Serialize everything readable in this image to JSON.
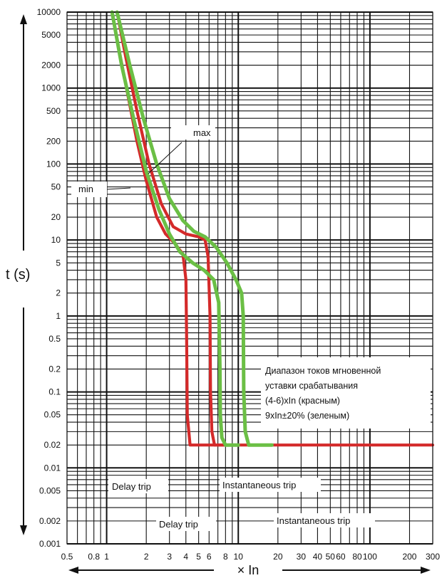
{
  "chart_data": {
    "type": "line",
    "xscale": "log",
    "yscale": "log",
    "xlim": [
      0.5,
      300
    ],
    "ylim": [
      0.001,
      10000
    ],
    "xlabel": "× In",
    "ylabel": "t (s)",
    "x_ticks": [
      "0.5",
      "0.8",
      "1",
      "2",
      "3",
      "4",
      "5",
      "6",
      "8",
      "10",
      "20",
      "30",
      "40",
      "50",
      "60",
      "80",
      "100",
      "200",
      "300"
    ],
    "y_ticks": [
      "0.001",
      "0.002",
      "0.005",
      "0.01",
      "0.02",
      "0.05",
      "0.1",
      "0.2",
      "0.5",
      "1",
      "2",
      "5",
      "10",
      "20",
      "50",
      "100",
      "200",
      "500",
      "1000",
      "2000",
      "5000",
      "10000"
    ],
    "grid": true,
    "annotations": {
      "max": "max",
      "min": "min",
      "delay_trip": "Delay trip",
      "instantaneous_trip": "Instantaneous trip",
      "note": [
        "Диапазон токов мгновенной",
        "уставки срабатывания",
        "(4-6)xIn (красным)",
        "9xIn±20% (зеленым)"
      ]
    },
    "series": [
      {
        "color": "#d42a2a",
        "x": [
          1.1,
          1.25,
          1.45,
          1.7,
          2.0,
          2.4,
          2.8,
          3.3,
          3.8,
          4.0,
          4.05,
          4.1,
          4.3,
          5.0,
          10.0,
          300.0
        ],
        "y": [
          10000,
          3000,
          800,
          200,
          60,
          20,
          12,
          9,
          6.5,
          3.0,
          0.5,
          0.05,
          0.02,
          0.02,
          0.02,
          0.02
        ]
      },
      {
        "color": "#d42a2a",
        "x": [
          1.2,
          1.4,
          1.7,
          2.1,
          2.6,
          3.2,
          4.0,
          5.0,
          5.6,
          5.9,
          6.1,
          6.15,
          6.3,
          6.6,
          10.0
        ],
        "y": [
          10000,
          2500,
          500,
          100,
          30,
          15,
          12,
          11,
          10,
          6.0,
          1.0,
          0.1,
          0.03,
          0.02,
          0.02
        ]
      },
      {
        "color": "#6bbf45",
        "x": [
          1.1,
          1.3,
          1.6,
          2.0,
          2.5,
          3.0,
          3.6,
          4.5,
          5.5,
          6.5,
          7.1,
          7.25,
          7.3,
          7.5,
          8.0,
          10.0
        ],
        "y": [
          10000,
          2000,
          400,
          80,
          25,
          12,
          7.0,
          5.0,
          4.0,
          3.0,
          1.5,
          0.2,
          0.05,
          0.025,
          0.02,
          0.02
        ]
      },
      {
        "color": "#6bbf45",
        "x": [
          1.2,
          1.5,
          1.9,
          2.4,
          3.0,
          3.8,
          4.6,
          5.6,
          6.8,
          8.2,
          9.6,
          10.6,
          10.9,
          11.0,
          11.3,
          12.0,
          18.0
        ],
        "y": [
          10000,
          2000,
          400,
          100,
          35,
          18,
          13,
          11,
          8.0,
          5.0,
          3.0,
          2.0,
          1.0,
          0.1,
          0.03,
          0.02,
          0.02
        ]
      }
    ]
  }
}
